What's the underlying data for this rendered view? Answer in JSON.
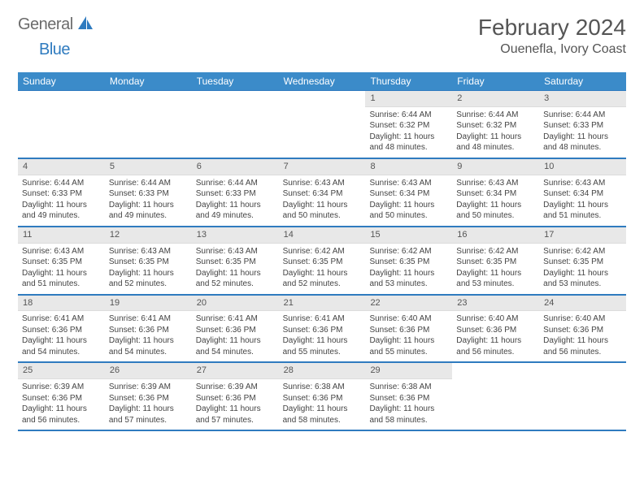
{
  "logo": {
    "text_general": "General",
    "text_blue": "Blue"
  },
  "title": "February 2024",
  "location": "Ouenefla, Ivory Coast",
  "colors": {
    "header_bg": "#3b8bc9",
    "header_border": "#2f7bbf",
    "daynum_bg": "#e8e8e8",
    "text": "#444444",
    "title_text": "#555555"
  },
  "day_names": [
    "Sunday",
    "Monday",
    "Tuesday",
    "Wednesday",
    "Thursday",
    "Friday",
    "Saturday"
  ],
  "weeks": [
    [
      {
        "empty": true
      },
      {
        "empty": true
      },
      {
        "empty": true
      },
      {
        "empty": true
      },
      {
        "n": "1",
        "sunrise": "6:44 AM",
        "sunset": "6:32 PM",
        "daylight": "11 hours and 48 minutes."
      },
      {
        "n": "2",
        "sunrise": "6:44 AM",
        "sunset": "6:32 PM",
        "daylight": "11 hours and 48 minutes."
      },
      {
        "n": "3",
        "sunrise": "6:44 AM",
        "sunset": "6:33 PM",
        "daylight": "11 hours and 48 minutes."
      }
    ],
    [
      {
        "n": "4",
        "sunrise": "6:44 AM",
        "sunset": "6:33 PM",
        "daylight": "11 hours and 49 minutes."
      },
      {
        "n": "5",
        "sunrise": "6:44 AM",
        "sunset": "6:33 PM",
        "daylight": "11 hours and 49 minutes."
      },
      {
        "n": "6",
        "sunrise": "6:44 AM",
        "sunset": "6:33 PM",
        "daylight": "11 hours and 49 minutes."
      },
      {
        "n": "7",
        "sunrise": "6:43 AM",
        "sunset": "6:34 PM",
        "daylight": "11 hours and 50 minutes."
      },
      {
        "n": "8",
        "sunrise": "6:43 AM",
        "sunset": "6:34 PM",
        "daylight": "11 hours and 50 minutes."
      },
      {
        "n": "9",
        "sunrise": "6:43 AM",
        "sunset": "6:34 PM",
        "daylight": "11 hours and 50 minutes."
      },
      {
        "n": "10",
        "sunrise": "6:43 AM",
        "sunset": "6:34 PM",
        "daylight": "11 hours and 51 minutes."
      }
    ],
    [
      {
        "n": "11",
        "sunrise": "6:43 AM",
        "sunset": "6:35 PM",
        "daylight": "11 hours and 51 minutes."
      },
      {
        "n": "12",
        "sunrise": "6:43 AM",
        "sunset": "6:35 PM",
        "daylight": "11 hours and 52 minutes."
      },
      {
        "n": "13",
        "sunrise": "6:43 AM",
        "sunset": "6:35 PM",
        "daylight": "11 hours and 52 minutes."
      },
      {
        "n": "14",
        "sunrise": "6:42 AM",
        "sunset": "6:35 PM",
        "daylight": "11 hours and 52 minutes."
      },
      {
        "n": "15",
        "sunrise": "6:42 AM",
        "sunset": "6:35 PM",
        "daylight": "11 hours and 53 minutes."
      },
      {
        "n": "16",
        "sunrise": "6:42 AM",
        "sunset": "6:35 PM",
        "daylight": "11 hours and 53 minutes."
      },
      {
        "n": "17",
        "sunrise": "6:42 AM",
        "sunset": "6:35 PM",
        "daylight": "11 hours and 53 minutes."
      }
    ],
    [
      {
        "n": "18",
        "sunrise": "6:41 AM",
        "sunset": "6:36 PM",
        "daylight": "11 hours and 54 minutes."
      },
      {
        "n": "19",
        "sunrise": "6:41 AM",
        "sunset": "6:36 PM",
        "daylight": "11 hours and 54 minutes."
      },
      {
        "n": "20",
        "sunrise": "6:41 AM",
        "sunset": "6:36 PM",
        "daylight": "11 hours and 54 minutes."
      },
      {
        "n": "21",
        "sunrise": "6:41 AM",
        "sunset": "6:36 PM",
        "daylight": "11 hours and 55 minutes."
      },
      {
        "n": "22",
        "sunrise": "6:40 AM",
        "sunset": "6:36 PM",
        "daylight": "11 hours and 55 minutes."
      },
      {
        "n": "23",
        "sunrise": "6:40 AM",
        "sunset": "6:36 PM",
        "daylight": "11 hours and 56 minutes."
      },
      {
        "n": "24",
        "sunrise": "6:40 AM",
        "sunset": "6:36 PM",
        "daylight": "11 hours and 56 minutes."
      }
    ],
    [
      {
        "n": "25",
        "sunrise": "6:39 AM",
        "sunset": "6:36 PM",
        "daylight": "11 hours and 56 minutes."
      },
      {
        "n": "26",
        "sunrise": "6:39 AM",
        "sunset": "6:36 PM",
        "daylight": "11 hours and 57 minutes."
      },
      {
        "n": "27",
        "sunrise": "6:39 AM",
        "sunset": "6:36 PM",
        "daylight": "11 hours and 57 minutes."
      },
      {
        "n": "28",
        "sunrise": "6:38 AM",
        "sunset": "6:36 PM",
        "daylight": "11 hours and 58 minutes."
      },
      {
        "n": "29",
        "sunrise": "6:38 AM",
        "sunset": "6:36 PM",
        "daylight": "11 hours and 58 minutes."
      },
      {
        "empty": true
      },
      {
        "empty": true
      }
    ]
  ],
  "labels": {
    "sunrise_prefix": "Sunrise: ",
    "sunset_prefix": "Sunset: ",
    "daylight_prefix": "Daylight: "
  }
}
